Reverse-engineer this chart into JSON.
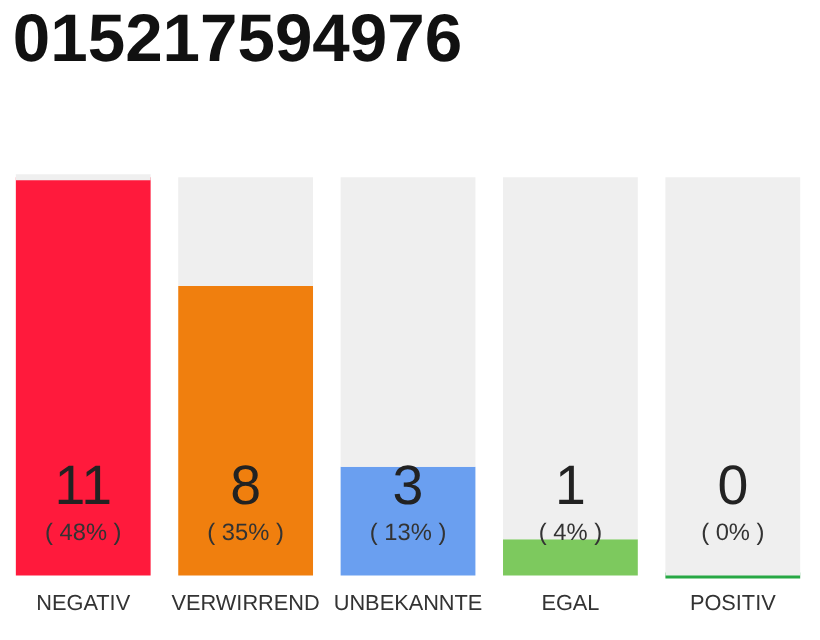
{
  "chart_data": {
    "type": "bar",
    "title": "015217594976",
    "categories": [
      "NEGATIV",
      "VERWIRREND",
      "UNBEKANNTE",
      "EGAL",
      "POSITIV"
    ],
    "stacked": true,
    "ylim": [
      0,
      11
    ],
    "tick_labels": "x",
    "series": [
      {
        "values": [
          11,
          8,
          3,
          1,
          0
        ],
        "colors": [
          "#ff1a3c",
          "#f07f0e",
          "#6a9ff0",
          "#7dc95e",
          "#27a844"
        ],
        "value_labels": [
          "11",
          "8",
          "3",
          "1",
          "0"
        ]
      },
      {
        "values": [
          0,
          3,
          8,
          10,
          11
        ],
        "color": "#efefef"
      }
    ],
    "annotations": [
      "( 48% )",
      "( 35% )",
      "( 13% )",
      "( 4% )",
      "( 0% )"
    ]
  }
}
